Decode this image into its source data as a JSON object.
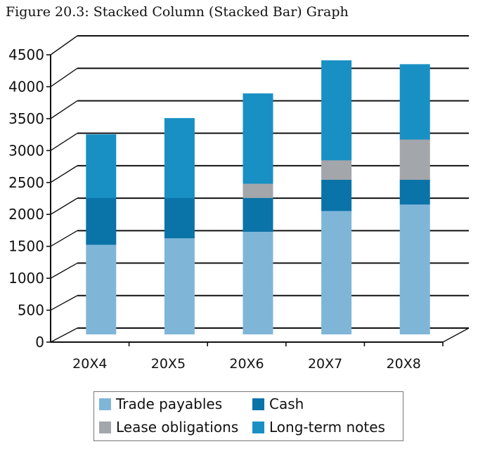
{
  "figure_title": "Figure 20.3: Stacked Column (Stacked Bar) Graph",
  "colors": {
    "trade_payables": "#7fb6d8",
    "cash": "#0a73a8",
    "lease_obligations": "#a3a6ab",
    "long_term_notes": "#1990c4"
  },
  "chart_data": {
    "type": "bar",
    "stacked": true,
    "categories": [
      "20X4",
      "20X5",
      "20X6",
      "20X7",
      "20X8"
    ],
    "series": [
      {
        "name": "Trade payables",
        "values": [
          1380,
          1480,
          1580,
          1900,
          2000
        ]
      },
      {
        "name": "Cash",
        "values": [
          720,
          620,
          520,
          480,
          380
        ]
      },
      {
        "name": "Lease obligations",
        "values": [
          0,
          0,
          220,
          300,
          620
        ]
      },
      {
        "name": "Long-term notes",
        "values": [
          970,
          1220,
          1380,
          1530,
          1150
        ]
      }
    ],
    "title": "",
    "xlabel": "",
    "ylabel": "",
    "ylim": [
      0,
      4500
    ],
    "yticks": [
      "0",
      "500",
      "1000",
      "1500",
      "2000",
      "2500",
      "3000",
      "3500",
      "4000",
      "4500"
    ],
    "grid": true,
    "legend": "bottom"
  }
}
